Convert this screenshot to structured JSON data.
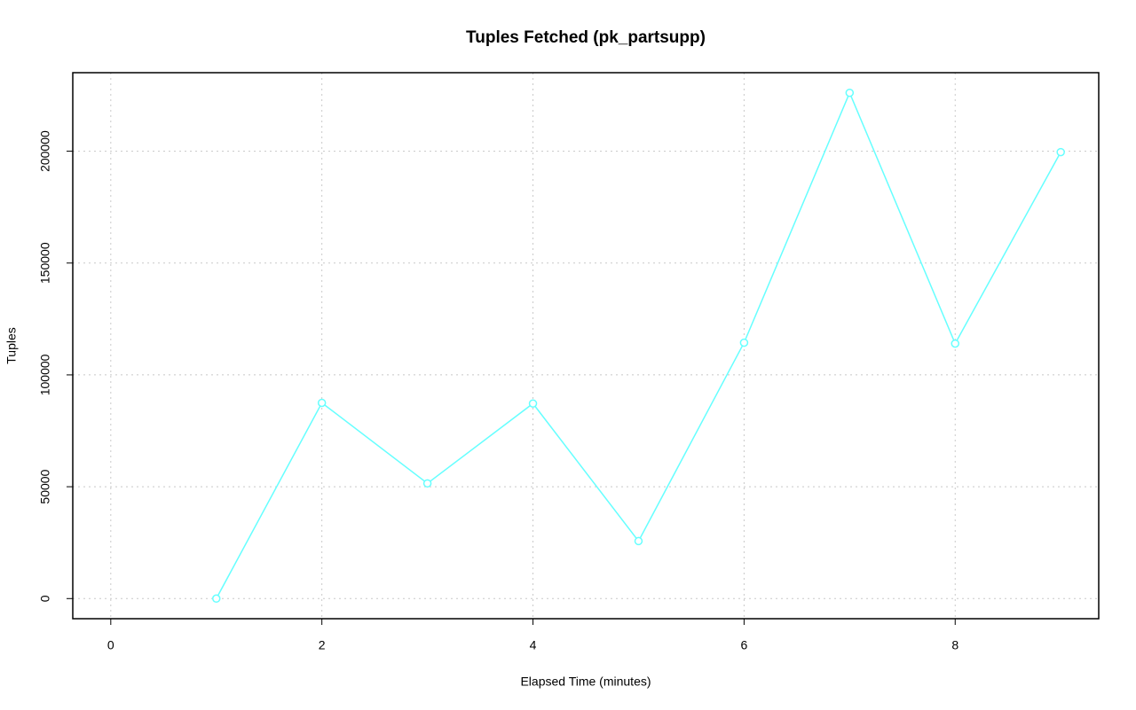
{
  "chart_data": {
    "type": "line",
    "title": "Tuples Fetched (pk_partsupp)",
    "x_label": "Elapsed Time (minutes)",
    "y_label": "Tuples",
    "x": [
      1,
      2,
      3,
      4,
      5,
      6,
      7,
      8,
      9
    ],
    "series": [
      {
        "color": "#66ffff",
        "values": [
          0,
          87500,
          51500,
          87200,
          25700,
          114400,
          226100,
          114000,
          199600
        ]
      }
    ],
    "xlim": [
      -0.36,
      9.36
    ],
    "xticks": [
      0,
      2,
      4,
      6,
      8
    ],
    "ylim": [
      -9000,
      235100
    ],
    "yticks": [
      0,
      50000,
      100000,
      150000,
      200000
    ],
    "grid": true
  }
}
